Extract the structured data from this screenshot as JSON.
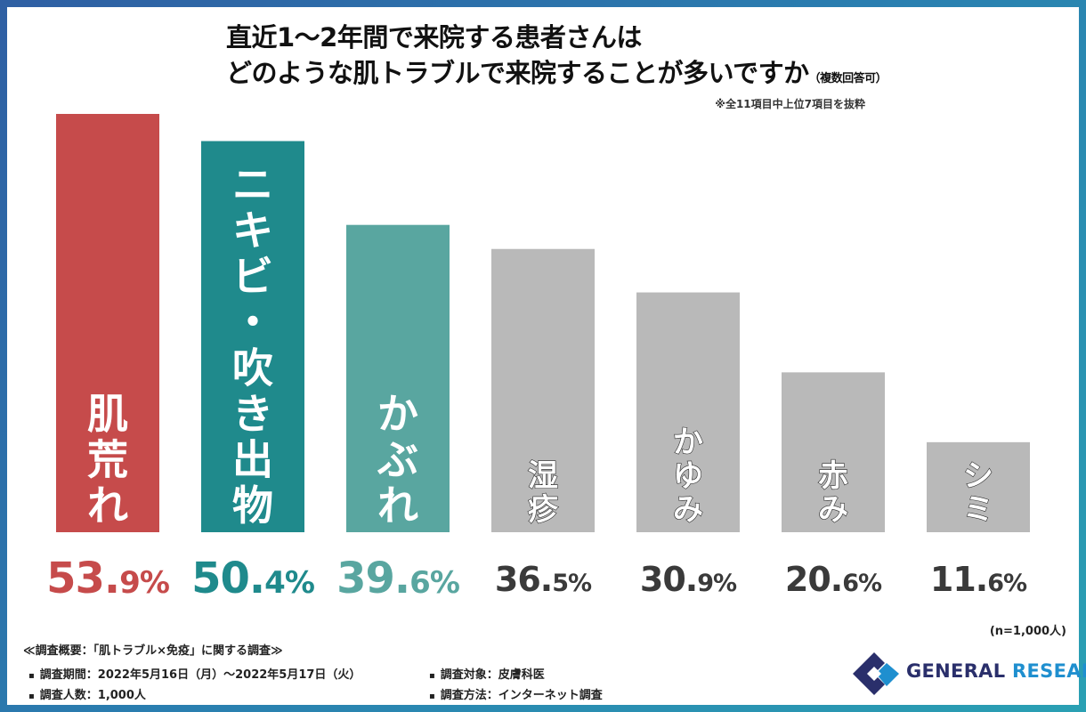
{
  "title": {
    "line1": "直近1～2年間で来院する患者さんは",
    "line2": "どのような肌トラブルで来院することが多いですか",
    "note": "（複数回答可）",
    "subnote": "※全11項目中上位7項目を抜粋"
  },
  "chart_data": {
    "type": "bar",
    "categories": [
      "肌荒れ",
      "ニキビ・吹き出物",
      "かぶれ",
      "湿疹",
      "かゆみ",
      "赤み",
      "シミ"
    ],
    "values": [
      53.9,
      50.4,
      39.6,
      36.5,
      30.9,
      20.6,
      11.6
    ],
    "value_labels": [
      {
        "int": "53.",
        "dec": "9",
        "unit": "%"
      },
      {
        "int": "50.",
        "dec": "4",
        "unit": "%"
      },
      {
        "int": "39.",
        "dec": "6",
        "unit": "%"
      },
      {
        "int": "36.",
        "dec": "5",
        "unit": "%"
      },
      {
        "int": "30.",
        "dec": "9",
        "unit": "%"
      },
      {
        "int": "20.",
        "dec": "6",
        "unit": "%"
      },
      {
        "int": "11.",
        "dec": "6",
        "unit": "%"
      }
    ],
    "colors": [
      "#c64b4b",
      "#1f8a8c",
      "#59a6a0",
      "#b9b9b9",
      "#b9b9b9",
      "#b9b9b9",
      "#b9b9b9"
    ],
    "label_colors": [
      "#c64b4b",
      "#1f8a8c",
      "#59a6a0",
      "#3a3a3a",
      "#3a3a3a",
      "#3a3a3a",
      "#3a3a3a"
    ],
    "ylim": [
      0,
      60
    ],
    "xlabel": "",
    "ylabel": ""
  },
  "sample_note": "(n=1,000人)",
  "footer": {
    "heading": "≪調査概要：「肌トラブル×免疫」に関する調査≫",
    "period": "調査期間：2022年5月16日（月）～2022年5月17日（火）",
    "people": "調査人数：1,000人",
    "target": "調査対象：皮膚科医",
    "method": "調査方法：インターネット調査"
  },
  "logo": {
    "part1": "GENERAL",
    "part2": "RESEARCH",
    "icon": "general-research-logo-icon"
  }
}
